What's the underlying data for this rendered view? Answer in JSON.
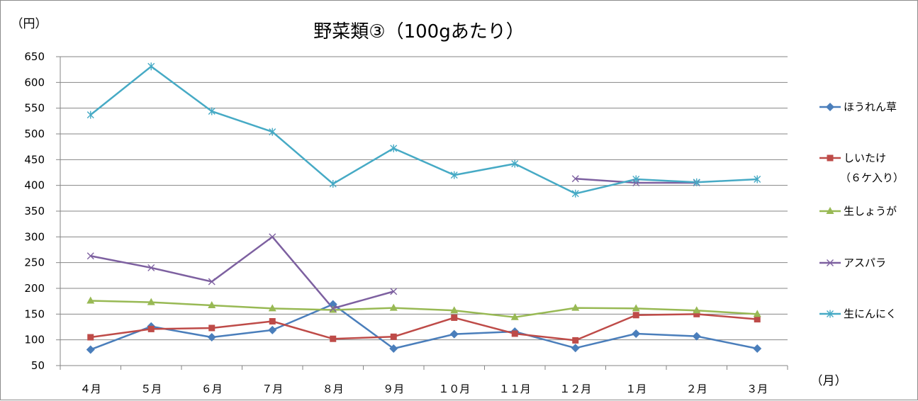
{
  "chart_data": {
    "type": "line",
    "title": "野菜類③（100gあたり）",
    "ylabel": "（円）",
    "xlabel": "（月）",
    "ylim": [
      50,
      650
    ],
    "ytick_step": 50,
    "categories": [
      "４月",
      "５月",
      "６月",
      "７月",
      "８月",
      "９月",
      "１０月",
      "１１月",
      "１２月",
      "１月",
      "２月",
      "３月"
    ],
    "series": [
      {
        "name": "ほうれん草",
        "color": "#4a7ebb",
        "marker": "diamond",
        "values": [
          81,
          126,
          105,
          119,
          169,
          83,
          111,
          116,
          84,
          112,
          107,
          83
        ]
      },
      {
        "name": "しいたけ",
        "name_line2": "（６ケ入り）",
        "color": "#be4b48",
        "marker": "square",
        "values": [
          105,
          121,
          123,
          136,
          102,
          106,
          143,
          112,
          99,
          148,
          150,
          140
        ]
      },
      {
        "name": "生しょうが",
        "color": "#98b954",
        "marker": "triangle",
        "values": [
          176,
          173,
          167,
          161,
          158,
          162,
          157,
          144,
          162,
          161,
          157,
          150
        ]
      },
      {
        "name": "アスパラ",
        "color": "#7d60a0",
        "marker": "x",
        "values": [
          263,
          240,
          213,
          300,
          161,
          194,
          null,
          null,
          413,
          405,
          405,
          null
        ]
      },
      {
        "name": "生にんにく",
        "color": "#46aac5",
        "marker": "star",
        "values": [
          537,
          631,
          544,
          504,
          403,
          472,
          420,
          442,
          384,
          412,
          406,
          412
        ]
      }
    ]
  }
}
